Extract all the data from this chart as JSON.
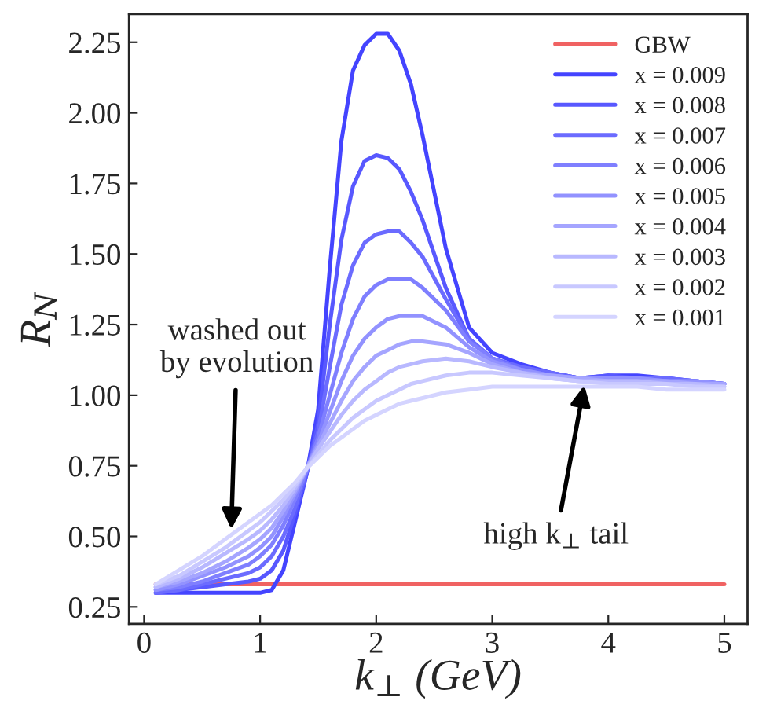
{
  "chart_data": {
    "type": "line",
    "xlabel": "k$_{⊥}$ (GeV)",
    "ylabel": "R$_{N}$",
    "x": [
      0.1,
      0.3,
      0.5,
      0.7,
      0.9,
      1.0,
      1.1,
      1.2,
      1.3,
      1.4,
      1.5,
      1.6,
      1.7,
      1.8,
      1.9,
      2.0,
      2.1,
      2.2,
      2.3,
      2.4,
      2.6,
      2.8,
      3.0,
      3.25,
      3.5,
      3.75,
      4.0,
      4.25,
      4.5,
      4.75,
      5.0
    ],
    "xlim": [
      -0.13,
      5.2
    ],
    "xticks": [
      0,
      1,
      2,
      3,
      4,
      5
    ],
    "ylim": [
      0.19,
      2.35
    ],
    "yticks": [
      {
        "value": 0.25,
        "label": "0.25"
      },
      {
        "value": 0.5,
        "label": "0.50"
      },
      {
        "value": 0.75,
        "label": "0.75"
      },
      {
        "value": 1.0,
        "label": "1.00"
      },
      {
        "value": 1.25,
        "label": "1.25"
      },
      {
        "value": 1.5,
        "label": "1.50"
      },
      {
        "value": 1.75,
        "label": "1.75"
      },
      {
        "value": 2.0,
        "label": "2.00"
      },
      {
        "value": 2.25,
        "label": "2.25"
      }
    ],
    "grid": false,
    "legend": "top right",
    "marker": "none",
    "line_style": "solid",
    "series": [
      {
        "name": "GBW",
        "color": "#f06262",
        "values": [
          0.33,
          0.33,
          0.33,
          0.33,
          0.33,
          0.33,
          0.33,
          0.33,
          0.33,
          0.33,
          0.33,
          0.33,
          0.33,
          0.33,
          0.33,
          0.33,
          0.33,
          0.33,
          0.33,
          0.33,
          0.33,
          0.33,
          0.33,
          0.33,
          0.33,
          0.33,
          0.33,
          0.33,
          0.33,
          0.33,
          0.33
        ]
      },
      {
        "name": "x = 0.009",
        "color": "#4444ff",
        "values": [
          0.3,
          0.3,
          0.3,
          0.3,
          0.3,
          0.3,
          0.31,
          0.38,
          0.55,
          0.72,
          0.95,
          1.45,
          1.9,
          2.15,
          2.24,
          2.28,
          2.28,
          2.22,
          2.1,
          1.92,
          1.52,
          1.24,
          1.15,
          1.11,
          1.08,
          1.06,
          1.07,
          1.07,
          1.06,
          1.05,
          1.04
        ]
      },
      {
        "name": "x = 0.008",
        "color": "#5858ff",
        "values": [
          0.3,
          0.31,
          0.32,
          0.33,
          0.34,
          0.35,
          0.38,
          0.45,
          0.58,
          0.72,
          0.9,
          1.25,
          1.55,
          1.74,
          1.83,
          1.85,
          1.84,
          1.8,
          1.72,
          1.62,
          1.38,
          1.2,
          1.13,
          1.1,
          1.08,
          1.06,
          1.07,
          1.06,
          1.06,
          1.05,
          1.04
        ]
      },
      {
        "name": "x = 0.007",
        "color": "#6b6bff",
        "values": [
          0.3,
          0.31,
          0.33,
          0.35,
          0.37,
          0.39,
          0.43,
          0.5,
          0.6,
          0.73,
          0.87,
          1.1,
          1.32,
          1.46,
          1.54,
          1.57,
          1.58,
          1.58,
          1.54,
          1.49,
          1.34,
          1.2,
          1.13,
          1.1,
          1.08,
          1.06,
          1.06,
          1.06,
          1.06,
          1.05,
          1.04
        ]
      },
      {
        "name": "x = 0.006",
        "color": "#7f7fff",
        "values": [
          0.31,
          0.32,
          0.34,
          0.37,
          0.4,
          0.43,
          0.47,
          0.54,
          0.63,
          0.73,
          0.85,
          1.0,
          1.15,
          1.27,
          1.35,
          1.39,
          1.41,
          1.41,
          1.41,
          1.38,
          1.3,
          1.19,
          1.13,
          1.09,
          1.07,
          1.06,
          1.06,
          1.06,
          1.05,
          1.05,
          1.04
        ]
      },
      {
        "name": "x = 0.005",
        "color": "#9292ff",
        "values": [
          0.31,
          0.33,
          0.36,
          0.39,
          0.43,
          0.46,
          0.5,
          0.57,
          0.65,
          0.74,
          0.83,
          0.94,
          1.05,
          1.14,
          1.2,
          1.24,
          1.27,
          1.28,
          1.28,
          1.28,
          1.24,
          1.17,
          1.12,
          1.09,
          1.07,
          1.06,
          1.06,
          1.06,
          1.05,
          1.05,
          1.04
        ]
      },
      {
        "name": "x = 0.004",
        "color": "#a5a5ff",
        "values": [
          0.32,
          0.34,
          0.37,
          0.41,
          0.46,
          0.49,
          0.53,
          0.59,
          0.66,
          0.74,
          0.82,
          0.9,
          0.98,
          1.05,
          1.1,
          1.14,
          1.16,
          1.18,
          1.19,
          1.19,
          1.18,
          1.15,
          1.11,
          1.08,
          1.07,
          1.06,
          1.05,
          1.05,
          1.05,
          1.04,
          1.04
        ]
      },
      {
        "name": "x = 0.003",
        "color": "#b8b8ff",
        "values": [
          0.32,
          0.35,
          0.39,
          0.44,
          0.49,
          0.52,
          0.56,
          0.61,
          0.67,
          0.74,
          0.81,
          0.87,
          0.93,
          0.98,
          1.02,
          1.05,
          1.08,
          1.1,
          1.11,
          1.12,
          1.13,
          1.12,
          1.1,
          1.08,
          1.06,
          1.05,
          1.05,
          1.05,
          1.04,
          1.04,
          1.03
        ]
      },
      {
        "name": "x = 0.002",
        "color": "#c8c8ff",
        "values": [
          0.33,
          0.36,
          0.41,
          0.46,
          0.52,
          0.55,
          0.59,
          0.63,
          0.68,
          0.74,
          0.79,
          0.84,
          0.88,
          0.92,
          0.95,
          0.98,
          1.0,
          1.02,
          1.04,
          1.05,
          1.07,
          1.08,
          1.08,
          1.07,
          1.06,
          1.05,
          1.04,
          1.04,
          1.04,
          1.03,
          1.03
        ]
      },
      {
        "name": "x = 0.001",
        "color": "#d4d4ff",
        "values": [
          0.33,
          0.38,
          0.43,
          0.49,
          0.55,
          0.58,
          0.61,
          0.65,
          0.69,
          0.74,
          0.78,
          0.82,
          0.85,
          0.88,
          0.91,
          0.93,
          0.95,
          0.97,
          0.98,
          0.99,
          1.01,
          1.02,
          1.03,
          1.03,
          1.03,
          1.03,
          1.03,
          1.03,
          1.02,
          1.02,
          1.02
        ]
      }
    ],
    "annotations": [
      {
        "text": "washed out\nby evolution",
        "x": 0.75,
        "y": 0.51
      },
      {
        "text": "high k$_{⊥}$ tail",
        "x": 3.8,
        "y": 1.05
      }
    ]
  }
}
